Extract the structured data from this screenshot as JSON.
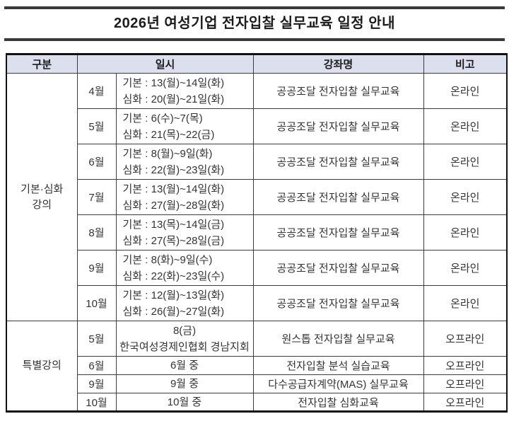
{
  "page": {
    "title": "2026년 여성기업 전자입찰 실무교육 일정 안내"
  },
  "colors": {
    "header_bg": "#dce0ee",
    "border": "#3c3c3c",
    "outer_border": "#111111",
    "text": "#333333"
  },
  "table": {
    "headers": {
      "category": "구분",
      "schedule": "일시",
      "course": "강좌명",
      "note": "비고"
    },
    "sections": [
      {
        "category_line1": "기본·심화",
        "category_line2": "강의",
        "rows": [
          {
            "month": "4월",
            "line1": "기본 : 13(월)~14일(화)",
            "line2": "심화 : 20(월)~21일(화)",
            "course": "공공조달 전자입찰 실무교육",
            "note": "온라인"
          },
          {
            "month": "5월",
            "line1": "기본 : 6(수)~7(목)",
            "line2": "심화 : 21(목)~22(금)",
            "course": "공공조달 전자입찰 실무교육",
            "note": "온라인"
          },
          {
            "month": "6월",
            "line1": "기본 : 8(월)~9일(화)",
            "line2": "심화 : 22(월)~23일(화)",
            "course": "공공조달 전자입찰 실무교육",
            "note": "온라인"
          },
          {
            "month": "7월",
            "line1": "기본 : 13(월)~14일(화)",
            "line2": "심화 : 27(월)~28일(화)",
            "course": "공공조달 전자입찰 실무교육",
            "note": "온라인"
          },
          {
            "month": "8월",
            "line1": "기본 : 13(목)~14일(금)",
            "line2": "심화 : 27(목)~28일(금)",
            "course": "공공조달 전자입찰 실무교육",
            "note": "온라인"
          },
          {
            "month": "9월",
            "line1": "기본 : 8(화)~9일(수)",
            "line2": "심화 : 22(화)~23일(수)",
            "course": "공공조달 전자입찰 실무교육",
            "note": "온라인"
          },
          {
            "month": "10월",
            "line1": "기본 : 12(월)~13일(화)",
            "line2": "심화 : 26(월)~27일(화)",
            "course": "공공조달 전자입찰 실무교육",
            "note": "온라인"
          }
        ]
      },
      {
        "category_line1": "특별강의",
        "category_line2": "",
        "rows": [
          {
            "month": "5월",
            "line1": "8(금)",
            "line2": "한국여성경제인협회 경남지회",
            "course": "원스톱 전자입찰 실무교육",
            "note": "오프라인"
          },
          {
            "month": "6월",
            "line1": "6월 중",
            "line2": "",
            "course": "전자입찰 분석 실습교육",
            "note": "오프라인"
          },
          {
            "month": "9월",
            "line1": "9월 중",
            "line2": "",
            "course": "다수공급자계약(MAS) 실무교육",
            "note": "오프라인"
          },
          {
            "month": "10월",
            "line1": "10월 중",
            "line2": "",
            "course": "전자입찰 심화교육",
            "note": "오프라인"
          }
        ]
      }
    ]
  }
}
